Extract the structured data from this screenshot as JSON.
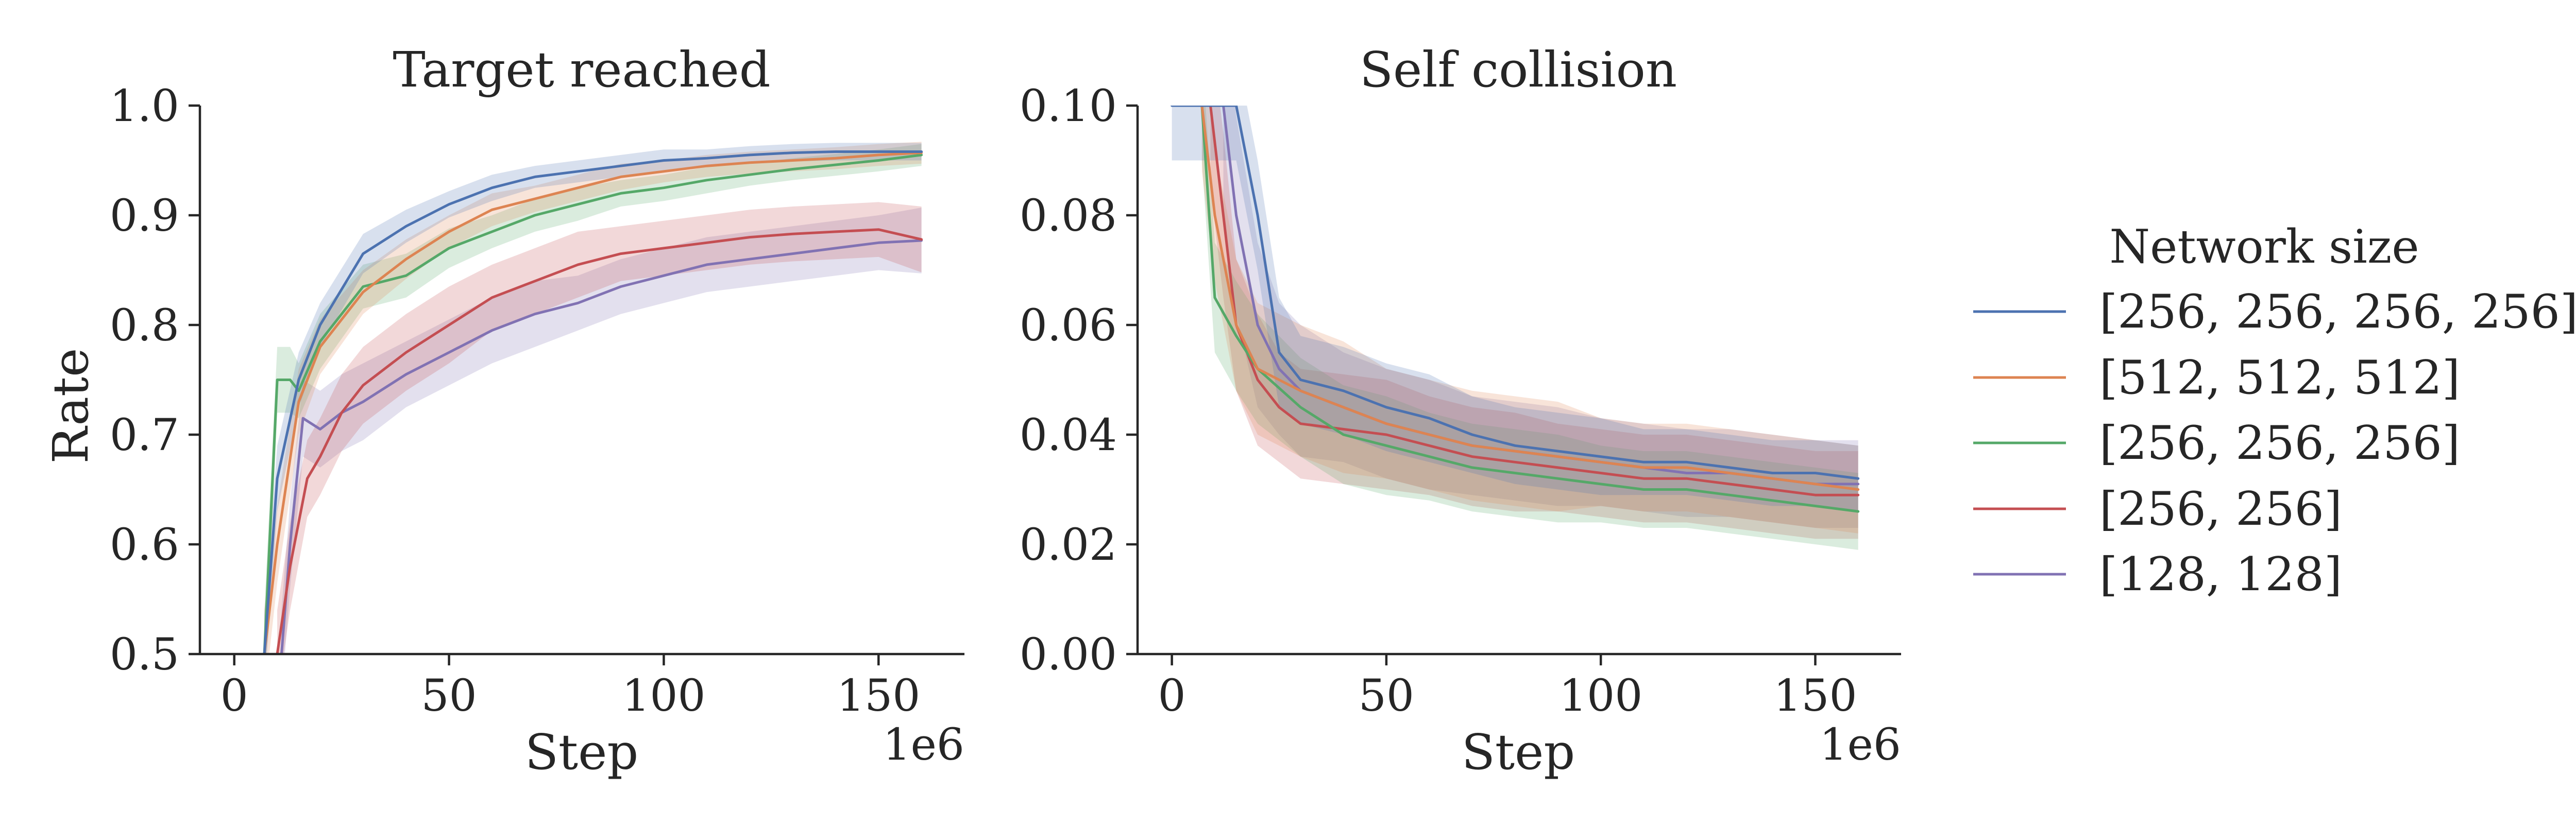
{
  "chart_data": [
    {
      "type": "line",
      "title": "Target reached",
      "xlabel": "Step",
      "ylabel": "Rate",
      "x_offset_label": "1e6",
      "xlim": [
        -8,
        170
      ],
      "ylim": [
        0.5,
        1.0
      ],
      "xticks": [
        "0",
        "50",
        "100",
        "150"
      ],
      "yticks": [
        "0.5",
        "0.6",
        "0.7",
        "0.8",
        "0.9",
        "1.0"
      ],
      "grid": false,
      "series": [
        {
          "name": "[256, 256, 256, 256]",
          "color": "#4c72b0",
          "x": [
            7,
            10,
            15,
            20,
            30,
            40,
            50,
            60,
            70,
            80,
            90,
            100,
            110,
            120,
            130,
            140,
            150,
            160
          ],
          "y": [
            0.5,
            0.66,
            0.75,
            0.8,
            0.865,
            0.89,
            0.91,
            0.925,
            0.935,
            0.94,
            0.945,
            0.95,
            0.952,
            0.955,
            0.957,
            0.958,
            0.958,
            0.958
          ],
          "band": [
            0.035,
            0.03,
            0.025,
            0.02,
            0.018,
            0.015,
            0.012,
            0.012,
            0.01,
            0.01,
            0.01,
            0.01,
            0.008,
            0.008,
            0.008,
            0.008,
            0.008,
            0.008
          ]
        },
        {
          "name": "[512, 512, 512]",
          "color": "#dd8452",
          "x": [
            7,
            10,
            15,
            20,
            30,
            40,
            50,
            60,
            70,
            80,
            90,
            100,
            110,
            120,
            130,
            140,
            150,
            160
          ],
          "y": [
            0.5,
            0.6,
            0.73,
            0.78,
            0.83,
            0.86,
            0.885,
            0.905,
            0.915,
            0.925,
            0.935,
            0.94,
            0.945,
            0.948,
            0.95,
            0.952,
            0.955,
            0.957
          ],
          "band": [
            0.04,
            0.035,
            0.03,
            0.025,
            0.02,
            0.018,
            0.015,
            0.015,
            0.012,
            0.012,
            0.012,
            0.01,
            0.01,
            0.01,
            0.01,
            0.01,
            0.01,
            0.01
          ]
        },
        {
          "name": "[256, 256, 256]",
          "color": "#55a868",
          "x": [
            7,
            10,
            13,
            15,
            20,
            30,
            40,
            50,
            60,
            70,
            80,
            90,
            100,
            110,
            120,
            130,
            140,
            150,
            160
          ],
          "y": [
            0.5,
            0.75,
            0.75,
            0.74,
            0.785,
            0.835,
            0.845,
            0.87,
            0.885,
            0.9,
            0.91,
            0.92,
            0.925,
            0.932,
            0.937,
            0.942,
            0.946,
            0.95,
            0.955
          ],
          "band": [
            0.04,
            0.03,
            0.03,
            0.025,
            0.025,
            0.02,
            0.02,
            0.018,
            0.015,
            0.015,
            0.015,
            0.012,
            0.012,
            0.012,
            0.01,
            0.01,
            0.01,
            0.01,
            0.01
          ]
        },
        {
          "name": "[256, 256]",
          "color": "#c44e52",
          "x": [
            10,
            13,
            17,
            20,
            25,
            30,
            40,
            50,
            60,
            70,
            80,
            90,
            100,
            110,
            120,
            130,
            140,
            150,
            160
          ],
          "y": [
            0.5,
            0.58,
            0.66,
            0.68,
            0.72,
            0.745,
            0.775,
            0.8,
            0.825,
            0.84,
            0.855,
            0.865,
            0.87,
            0.875,
            0.88,
            0.883,
            0.885,
            0.887,
            0.878
          ],
          "band": [
            0.04,
            0.04,
            0.035,
            0.035,
            0.035,
            0.035,
            0.035,
            0.035,
            0.03,
            0.03,
            0.03,
            0.025,
            0.025,
            0.025,
            0.025,
            0.025,
            0.025,
            0.025,
            0.03
          ]
        },
        {
          "name": "[128, 128]",
          "color": "#8172b3",
          "x": [
            11,
            13,
            16,
            20,
            25,
            30,
            40,
            50,
            60,
            70,
            80,
            90,
            100,
            110,
            120,
            130,
            140,
            150,
            160
          ],
          "y": [
            0.5,
            0.6,
            0.715,
            0.705,
            0.72,
            0.73,
            0.755,
            0.775,
            0.795,
            0.81,
            0.82,
            0.835,
            0.845,
            0.855,
            0.86,
            0.865,
            0.87,
            0.875,
            0.877
          ],
          "band": [
            0.04,
            0.04,
            0.035,
            0.035,
            0.035,
            0.035,
            0.03,
            0.03,
            0.03,
            0.03,
            0.025,
            0.025,
            0.025,
            0.025,
            0.025,
            0.025,
            0.025,
            0.025,
            0.03
          ]
        }
      ]
    },
    {
      "type": "line",
      "title": "Self collision",
      "xlabel": "Step",
      "ylabel": "",
      "x_offset_label": "1e6",
      "xlim": [
        -8,
        170
      ],
      "ylim": [
        0.0,
        0.1
      ],
      "xticks": [
        "0",
        "50",
        "100",
        "150"
      ],
      "yticks": [
        "0.00",
        "0.02",
        "0.04",
        "0.06",
        "0.08",
        "0.10"
      ],
      "grid": false,
      "series": [
        {
          "name": "[256, 256, 256, 256]",
          "color": "#4c72b0",
          "x": [
            0,
            5,
            10,
            15,
            20,
            25,
            30,
            40,
            50,
            60,
            70,
            80,
            90,
            100,
            110,
            120,
            130,
            140,
            150,
            160
          ],
          "y": [
            0.1,
            0.1,
            0.1,
            0.1,
            0.08,
            0.055,
            0.05,
            0.048,
            0.045,
            0.043,
            0.04,
            0.038,
            0.037,
            0.036,
            0.035,
            0.035,
            0.034,
            0.033,
            0.033,
            0.032
          ],
          "band": [
            0.01,
            0.01,
            0.01,
            0.01,
            0.01,
            0.01,
            0.008,
            0.008,
            0.008,
            0.008,
            0.007,
            0.007,
            0.007,
            0.007,
            0.006,
            0.006,
            0.006,
            0.006,
            0.006,
            0.006
          ]
        },
        {
          "name": "[512, 512, 512]",
          "color": "#dd8452",
          "x": [
            7,
            10,
            15,
            20,
            30,
            40,
            50,
            60,
            70,
            80,
            90,
            100,
            110,
            120,
            130,
            140,
            150,
            160
          ],
          "y": [
            0.1,
            0.08,
            0.06,
            0.052,
            0.048,
            0.045,
            0.042,
            0.04,
            0.038,
            0.037,
            0.036,
            0.035,
            0.034,
            0.034,
            0.033,
            0.032,
            0.031,
            0.03
          ],
          "band": [
            0.012,
            0.012,
            0.012,
            0.012,
            0.012,
            0.012,
            0.01,
            0.01,
            0.01,
            0.01,
            0.01,
            0.008,
            0.008,
            0.008,
            0.008,
            0.008,
            0.008,
            0.008
          ]
        },
        {
          "name": "[256, 256, 256]",
          "color": "#55a868",
          "x": [
            7,
            10,
            15,
            20,
            30,
            40,
            50,
            60,
            70,
            80,
            90,
            100,
            110,
            120,
            130,
            140,
            150,
            160
          ],
          "y": [
            0.1,
            0.065,
            0.058,
            0.052,
            0.045,
            0.04,
            0.038,
            0.036,
            0.034,
            0.033,
            0.032,
            0.031,
            0.03,
            0.03,
            0.029,
            0.028,
            0.027,
            0.026
          ],
          "band": [
            0.01,
            0.01,
            0.01,
            0.01,
            0.009,
            0.009,
            0.009,
            0.008,
            0.008,
            0.008,
            0.008,
            0.007,
            0.007,
            0.007,
            0.007,
            0.007,
            0.007,
            0.007
          ]
        },
        {
          "name": "[256, 256]",
          "color": "#c44e52",
          "x": [
            9,
            12,
            15,
            20,
            25,
            30,
            40,
            50,
            60,
            70,
            80,
            90,
            100,
            110,
            120,
            130,
            140,
            150,
            160
          ],
          "y": [
            0.1,
            0.08,
            0.06,
            0.05,
            0.045,
            0.042,
            0.041,
            0.04,
            0.038,
            0.036,
            0.035,
            0.034,
            0.033,
            0.032,
            0.032,
            0.031,
            0.03,
            0.029,
            0.029
          ],
          "band": [
            0.015,
            0.015,
            0.012,
            0.012,
            0.01,
            0.01,
            0.01,
            0.01,
            0.009,
            0.009,
            0.009,
            0.008,
            0.008,
            0.008,
            0.008,
            0.008,
            0.008,
            0.008,
            0.008
          ]
        },
        {
          "name": "[128, 128]",
          "color": "#8172b3",
          "x": [
            12,
            15,
            20,
            25,
            30,
            40,
            50,
            60,
            70,
            80,
            90,
            100,
            110,
            120,
            130,
            140,
            150,
            160
          ],
          "y": [
            0.1,
            0.08,
            0.06,
            0.052,
            0.048,
            0.045,
            0.042,
            0.04,
            0.038,
            0.037,
            0.036,
            0.035,
            0.034,
            0.033,
            0.033,
            0.032,
            0.031,
            0.031
          ],
          "band": [
            0.02,
            0.018,
            0.015,
            0.012,
            0.012,
            0.01,
            0.01,
            0.01,
            0.009,
            0.009,
            0.009,
            0.008,
            0.008,
            0.008,
            0.008,
            0.008,
            0.008,
            0.008
          ]
        }
      ]
    }
  ],
  "legend": {
    "title": "Network size",
    "placement": "right",
    "items": [
      {
        "label": "[256, 256, 256, 256]",
        "color": "#4c72b0"
      },
      {
        "label": "[512, 512, 512]",
        "color": "#dd8452"
      },
      {
        "label": "[256, 256, 256]",
        "color": "#55a868"
      },
      {
        "label": "[256, 256]",
        "color": "#c44e52"
      },
      {
        "label": "[128, 128]",
        "color": "#8172b3"
      }
    ]
  }
}
